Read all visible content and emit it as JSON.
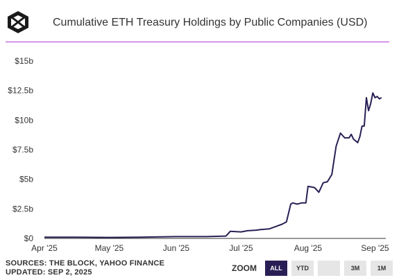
{
  "header": {
    "title": "Cumulative ETH Treasury Holdings by Public Companies (USD)"
  },
  "chart_data": {
    "type": "line",
    "title": "Cumulative ETH Treasury Holdings by Public Companies (USD)",
    "xlabel": "",
    "ylabel": "",
    "y_ticks": [
      "$0",
      "$2.5b",
      "$5b",
      "$7.5b",
      "$10b",
      "$12.5b",
      "$15b"
    ],
    "x_ticks": [
      "Apr '25",
      "May '25",
      "Jun '25",
      "Jul '25",
      "Aug '25",
      "Sep '25"
    ],
    "ylim": [
      0,
      15
    ],
    "y_unit": "billions USD",
    "grid": false,
    "series": [
      {
        "color": "#2a1f55",
        "x": [
          "2025-04-01",
          "2025-04-15",
          "2025-05-01",
          "2025-05-15",
          "2025-06-01",
          "2025-06-15",
          "2025-06-24",
          "2025-06-26",
          "2025-07-01",
          "2025-07-04",
          "2025-07-08",
          "2025-07-10",
          "2025-07-14",
          "2025-07-17",
          "2025-07-20",
          "2025-07-22",
          "2025-07-24",
          "2025-07-25",
          "2025-07-27",
          "2025-07-29",
          "2025-07-31",
          "2025-08-01",
          "2025-08-04",
          "2025-08-06",
          "2025-08-08",
          "2025-08-10",
          "2025-08-12",
          "2025-08-14",
          "2025-08-16",
          "2025-08-17",
          "2025-08-18",
          "2025-08-20",
          "2025-08-21",
          "2025-08-22",
          "2025-08-24",
          "2025-08-25",
          "2025-08-26",
          "2025-08-27",
          "2025-08-28",
          "2025-08-29",
          "2025-08-30",
          "2025-08-31",
          "2025-09-01",
          "2025-09-02",
          "2025-09-03",
          "2025-09-04"
        ],
        "y": [
          0.1,
          0.1,
          0.08,
          0.1,
          0.15,
          0.15,
          0.2,
          0.6,
          0.55,
          0.65,
          0.7,
          0.75,
          0.8,
          1.0,
          1.2,
          1.4,
          2.9,
          3.0,
          2.9,
          3.0,
          3.0,
          4.4,
          4.3,
          3.9,
          4.7,
          4.8,
          5.4,
          7.8,
          8.9,
          8.7,
          8.5,
          8.5,
          8.8,
          8.4,
          8.1,
          8.6,
          9.5,
          9.5,
          11.9,
          10.8,
          11.4,
          12.3,
          11.9,
          12.0,
          11.8,
          11.9
        ]
      }
    ]
  },
  "footer": {
    "sources": "SOURCES: THE BLOCK, YAHOO FINANCE",
    "updated": "UPDATED: SEP 2, 2025"
  },
  "zoom": {
    "label": "ZOOM",
    "buttons": [
      {
        "label": "ALL",
        "active": true
      },
      {
        "label": "YTD",
        "active": false
      },
      {
        "label": "",
        "active": false
      },
      {
        "label": "3M",
        "active": false
      },
      {
        "label": "1M",
        "active": false
      }
    ]
  }
}
